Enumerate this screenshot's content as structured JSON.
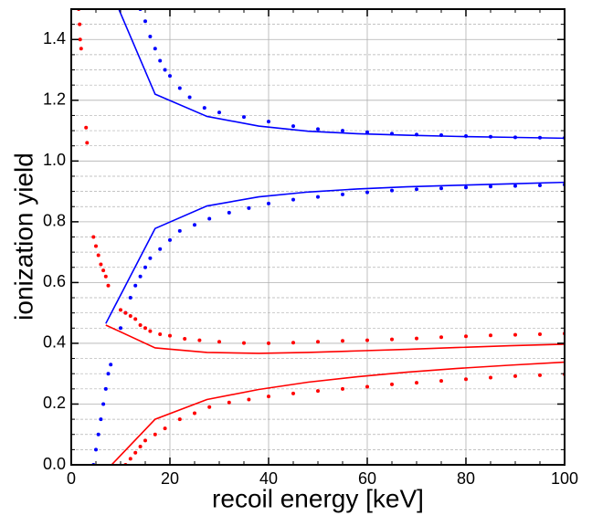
{
  "chart_data": {
    "type": "line",
    "xlabel": "recoil energy [keV]",
    "ylabel": "ionization yield",
    "xlim": [
      0,
      100
    ],
    "ylim": [
      0,
      1.5
    ],
    "xticks": [
      0,
      20,
      40,
      60,
      80,
      100
    ],
    "xminorticks": [
      5,
      10,
      15,
      25,
      30,
      35,
      45,
      50,
      55,
      65,
      70,
      75,
      85,
      90,
      95
    ],
    "yticks": [
      {
        "value": 0,
        "label": "0.0"
      },
      0.2,
      0.4,
      0.6,
      0.8,
      {
        "value": 1,
        "label": "1.0"
      },
      1.2,
      1.4
    ],
    "yminorticks": [
      0.05,
      0.1,
      0.15,
      0.25,
      0.3,
      0.35,
      0.45,
      0.5,
      0.55,
      0.65,
      0.7,
      0.75,
      0.85,
      0.9,
      0.95,
      1.05,
      1.1,
      1.15,
      1.25,
      1.3,
      1.35,
      1.45
    ],
    "grid": true,
    "series": [
      {
        "type": "line",
        "color": "#0000ff",
        "x": [
          7,
          17,
          27.5,
          38,
          48,
          58,
          68,
          78,
          89,
          100
        ],
        "values": [
          1.6,
          1.22,
          1.147,
          1.115,
          1.098,
          1.09,
          1.085,
          1.081,
          1.078,
          1.075
        ]
      },
      {
        "type": "line",
        "color": "#0000ff",
        "x": [
          7,
          17,
          27.5,
          38,
          48,
          58,
          68,
          78,
          89,
          100
        ],
        "values": [
          0.465,
          0.778,
          0.852,
          0.882,
          0.898,
          0.908,
          0.915,
          0.92,
          0.925,
          0.93
        ]
      },
      {
        "type": "line",
        "color": "#ff0000",
        "x": [
          7,
          17,
          27.5,
          38,
          48,
          58,
          68,
          78,
          89,
          100
        ],
        "values": [
          0.46,
          0.385,
          0.37,
          0.367,
          0.37,
          0.375,
          0.38,
          0.386,
          0.392,
          0.397
        ]
      },
      {
        "type": "line",
        "color": "#ff0000",
        "x": [
          7,
          17,
          27.5,
          38,
          48,
          58,
          68,
          78,
          89,
          100
        ],
        "values": [
          -0.02,
          0.15,
          0.215,
          0.248,
          0.272,
          0.29,
          0.305,
          0.317,
          0.328,
          0.338
        ]
      },
      {
        "type": "scatter",
        "color": "#0000ff",
        "x": [
          14,
          15,
          16,
          17,
          18,
          19,
          20,
          22,
          24,
          27,
          30,
          35,
          40,
          45,
          50,
          55,
          60,
          65,
          70,
          75,
          80,
          85,
          90,
          95,
          100
        ],
        "values": [
          1.5,
          1.46,
          1.41,
          1.37,
          1.33,
          1.3,
          1.28,
          1.24,
          1.21,
          1.175,
          1.16,
          1.145,
          1.13,
          1.115,
          1.105,
          1.1,
          1.095,
          1.09,
          1.087,
          1.085,
          1.082,
          1.08,
          1.078,
          1.077,
          1.076
        ]
      },
      {
        "type": "scatter",
        "color": "#0000ff",
        "x": [
          10,
          11,
          12,
          13,
          14,
          15,
          16,
          18,
          20,
          22,
          25,
          28,
          32,
          36,
          40,
          45,
          50,
          55,
          60,
          65,
          70,
          75,
          80,
          85,
          90,
          95,
          100
        ],
        "values": [
          0.45,
          0.5,
          0.55,
          0.59,
          0.62,
          0.65,
          0.68,
          0.71,
          0.74,
          0.77,
          0.79,
          0.81,
          0.83,
          0.845,
          0.86,
          0.873,
          0.882,
          0.89,
          0.897,
          0.903,
          0.907,
          0.91,
          0.913,
          0.916,
          0.918,
          0.92,
          0.922
        ]
      },
      {
        "type": "scatter",
        "color": "#0000ff",
        "x": [
          4.5,
          5,
          5.5,
          6,
          6.5,
          7,
          7.5,
          8
        ],
        "values": [
          0,
          0.05,
          0.1,
          0.15,
          0.2,
          0.25,
          0.3,
          0.33
        ]
      },
      {
        "type": "scatter",
        "color": "#ff0000",
        "x": [
          1.5,
          1.7,
          1.8,
          2,
          3,
          3.2,
          4.5,
          5,
          5.5,
          6,
          6.5,
          7,
          7.5
        ],
        "values": [
          1.5,
          1.45,
          1.4,
          1.37,
          1.11,
          1.06,
          0.75,
          0.72,
          0.69,
          0.66,
          0.64,
          0.62,
          0.59
        ]
      },
      {
        "type": "scatter",
        "color": "#ff0000",
        "x": [
          10,
          11,
          12,
          13,
          14,
          15,
          16,
          18,
          20,
          23,
          26,
          30,
          35,
          40,
          45,
          50,
          55,
          60,
          65,
          70,
          75,
          80,
          85,
          90,
          95,
          100
        ],
        "values": [
          0.51,
          0.5,
          0.49,
          0.48,
          0.46,
          0.45,
          0.44,
          0.43,
          0.425,
          0.415,
          0.41,
          0.405,
          0.401,
          0.4,
          0.402,
          0.405,
          0.408,
          0.41,
          0.413,
          0.416,
          0.42,
          0.423,
          0.426,
          0.428,
          0.43,
          0.432
        ]
      },
      {
        "type": "scatter",
        "color": "#ff0000",
        "x": [
          11,
          12,
          13,
          14,
          15,
          17,
          19,
          22,
          25,
          28,
          32,
          36,
          40,
          45,
          50,
          55,
          60,
          65,
          70,
          75,
          80,
          85,
          90,
          95,
          100
        ],
        "values": [
          0,
          0.02,
          0.04,
          0.06,
          0.08,
          0.1,
          0.12,
          0.15,
          0.17,
          0.19,
          0.205,
          0.215,
          0.225,
          0.235,
          0.243,
          0.25,
          0.257,
          0.265,
          0.27,
          0.276,
          0.282,
          0.287,
          0.292,
          0.295,
          0.298
        ]
      }
    ]
  }
}
